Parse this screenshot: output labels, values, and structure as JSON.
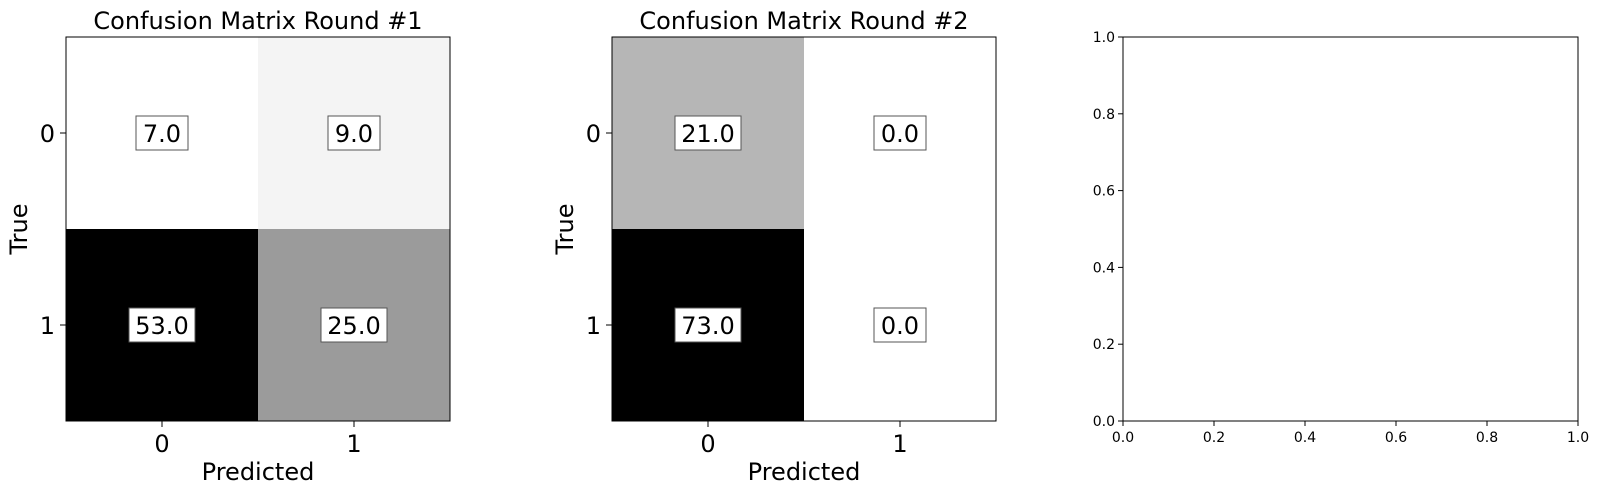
{
  "chart_data": [
    {
      "type": "heatmap",
      "title": "Confusion Matrix Round #1",
      "xlabel": "Predicted",
      "ylabel": "True",
      "x_categories": [
        "0",
        "1"
      ],
      "y_categories": [
        "0",
        "1"
      ],
      "values": [
        [
          7.0,
          9.0
        ],
        [
          53.0,
          25.0
        ]
      ],
      "value_labels": [
        [
          "7.0",
          "9.0"
        ],
        [
          "53.0",
          "25.0"
        ]
      ],
      "colormap": "gray_r",
      "color_range": [
        7.0,
        53.0
      ]
    },
    {
      "type": "heatmap",
      "title": "Confusion Matrix Round #2",
      "xlabel": "Predicted",
      "ylabel": "True",
      "x_categories": [
        "0",
        "1"
      ],
      "y_categories": [
        "0",
        "1"
      ],
      "values": [
        [
          21.0,
          0.0
        ],
        [
          73.0,
          0.0
        ]
      ],
      "value_labels": [
        [
          "21.0",
          "0.0"
        ],
        [
          "73.0",
          "0.0"
        ]
      ],
      "colormap": "gray_r",
      "color_range": [
        0.0,
        73.0
      ]
    },
    {
      "type": "scatter",
      "title": "",
      "xlabel": "",
      "ylabel": "",
      "series": [],
      "xlim": [
        0.0,
        1.0
      ],
      "ylim": [
        0.0,
        1.0
      ],
      "x_ticks": [
        "0.0",
        "0.2",
        "0.4",
        "0.6",
        "0.8",
        "1.0"
      ],
      "y_ticks": [
        "0.0",
        "0.2",
        "0.4",
        "0.6",
        "0.8",
        "1.0"
      ],
      "grid": false
    }
  ]
}
